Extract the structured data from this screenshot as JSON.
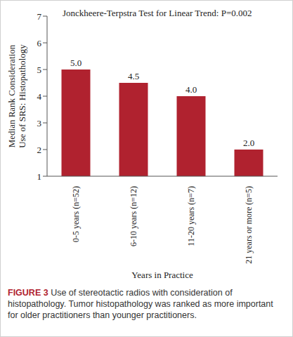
{
  "chart_data": {
    "type": "bar",
    "annotation": "Jonckheere-Terpstra Test for Linear Trend: P=0.002",
    "xlabel": "Years in Practice",
    "ylabel": [
      "Median Rank Consideration",
      "Use of SRS: Histopathology"
    ],
    "categories": [
      "0-5 years (n=52)",
      "6-10 years (n=12)",
      "11-20 years (n=7)",
      "21 years or more (n=5)"
    ],
    "values": [
      5.0,
      4.5,
      4.0,
      2.0
    ],
    "value_labels": [
      "5.0",
      "4.5",
      "4.0",
      "2.0"
    ],
    "data_labels": true,
    "color": "#b0222f",
    "ylim": [
      1,
      7
    ],
    "yticks": [
      1,
      2,
      3,
      4,
      5,
      6,
      7
    ],
    "grid": false,
    "caption_label": "FIGURE 3",
    "caption": "Use of stereotactic radios with consideration of histopathology. Tumor histopathology was ranked as more important for older practitioners than younger practitioners."
  }
}
